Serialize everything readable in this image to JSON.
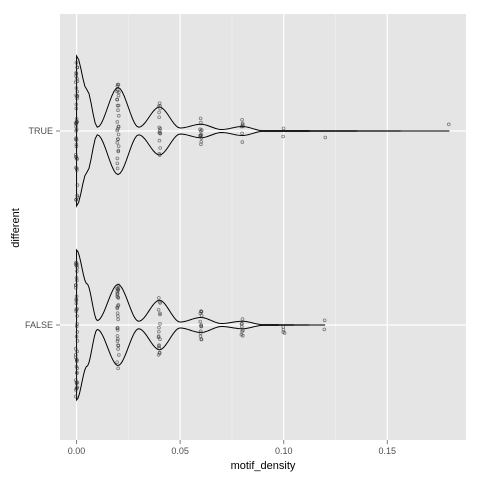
{
  "chart_data": {
    "type": "violin",
    "xlabel": "motif_density",
    "ylabel": "different",
    "xlim": [
      -0.008,
      0.188
    ],
    "x_ticks": [
      0.0,
      0.05,
      0.1,
      0.15
    ],
    "x_tick_labels": [
      "0.00",
      "0.05",
      "0.10",
      "0.15"
    ],
    "categories": [
      "TRUE",
      "FALSE"
    ],
    "grid": true,
    "background": "#e5e5e5",
    "colors": {
      "grid": "#ffffff",
      "violin": "#000000",
      "points": "#333333"
    },
    "violins": [
      {
        "category": "TRUE",
        "max_x": 0.18,
        "density": [
          [
            0.0,
            1.0
          ],
          [
            0.005,
            0.55
          ],
          [
            0.01,
            0.05
          ],
          [
            0.02,
            0.58
          ],
          [
            0.03,
            0.05
          ],
          [
            0.04,
            0.32
          ],
          [
            0.05,
            0.04
          ],
          [
            0.06,
            0.09
          ],
          [
            0.07,
            0.02
          ],
          [
            0.08,
            0.06
          ],
          [
            0.09,
            0.005
          ],
          [
            0.18,
            0.0
          ]
        ],
        "points": [
          {
            "x": 0.0,
            "n": 45
          },
          {
            "x": 0.02,
            "n": 28
          },
          {
            "x": 0.04,
            "n": 16
          },
          {
            "x": 0.06,
            "n": 12
          },
          {
            "x": 0.08,
            "n": 7
          },
          {
            "x": 0.1,
            "n": 2
          },
          {
            "x": 0.12,
            "n": 1
          },
          {
            "x": 0.18,
            "n": 1
          }
        ]
      },
      {
        "category": "FALSE",
        "max_x": 0.12,
        "density": [
          [
            0.0,
            1.0
          ],
          [
            0.005,
            0.55
          ],
          [
            0.01,
            0.06
          ],
          [
            0.02,
            0.54
          ],
          [
            0.03,
            0.05
          ],
          [
            0.04,
            0.33
          ],
          [
            0.05,
            0.04
          ],
          [
            0.06,
            0.1
          ],
          [
            0.07,
            0.02
          ],
          [
            0.08,
            0.05
          ],
          [
            0.09,
            0.005
          ],
          [
            0.12,
            0.0
          ]
        ],
        "points": [
          {
            "x": 0.0,
            "n": 45
          },
          {
            "x": 0.02,
            "n": 30
          },
          {
            "x": 0.04,
            "n": 18
          },
          {
            "x": 0.06,
            "n": 14
          },
          {
            "x": 0.08,
            "n": 8
          },
          {
            "x": 0.1,
            "n": 4
          },
          {
            "x": 0.12,
            "n": 2
          }
        ]
      }
    ]
  }
}
